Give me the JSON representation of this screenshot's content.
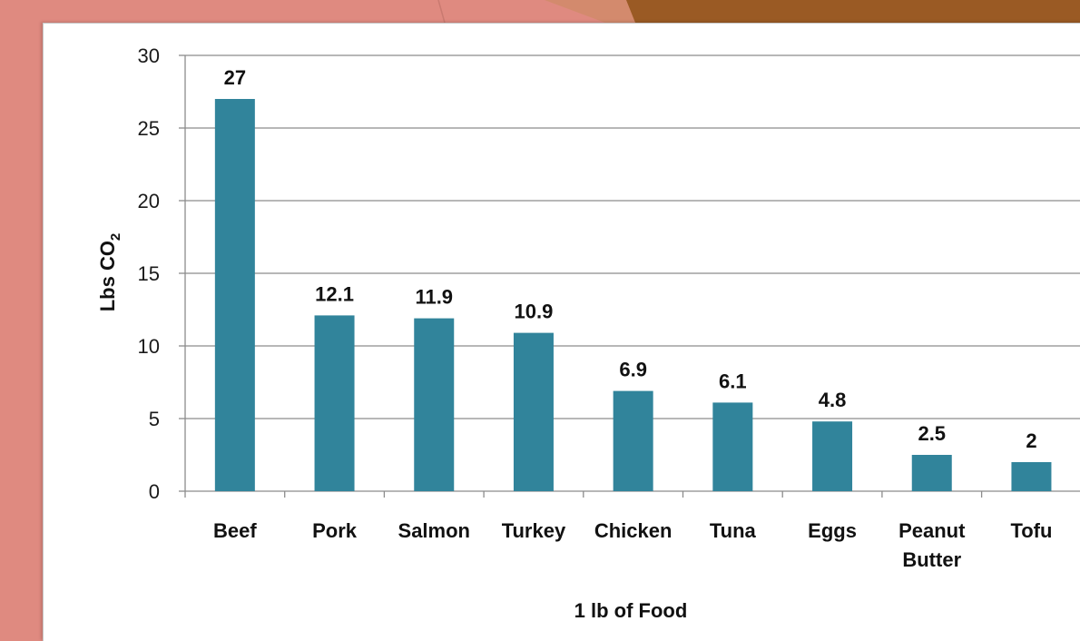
{
  "theme": {
    "slide_background": "#df8a80",
    "accent_brown": "#9a5a24",
    "accent_tan": "#d38a6d",
    "panel": "#ffffff",
    "bar_color": "#31849b",
    "grid_color": "#8c8c8c"
  },
  "chart_data": {
    "type": "bar",
    "title": "",
    "xlabel": "1 lb of Food",
    "ylabel_main": "Lbs CO",
    "ylabel_sub": "2",
    "ylim": [
      0,
      30
    ],
    "yticks": [
      0,
      5,
      10,
      15,
      20,
      25,
      30
    ],
    "grid": true,
    "categories": [
      [
        "Beef"
      ],
      [
        "Pork"
      ],
      [
        "Salmon"
      ],
      [
        "Turkey"
      ],
      [
        "Chicken"
      ],
      [
        "Tuna"
      ],
      [
        "Eggs"
      ],
      [
        "Peanut",
        "Butter"
      ],
      [
        "Tofu"
      ]
    ],
    "values": [
      27,
      12.1,
      11.9,
      10.9,
      6.9,
      6.1,
      4.8,
      2.5,
      2
    ],
    "value_labels": [
      "27",
      "12.1",
      "11.9",
      "10.9",
      "6.9",
      "6.1",
      "4.8",
      "2.5",
      "2"
    ]
  }
}
